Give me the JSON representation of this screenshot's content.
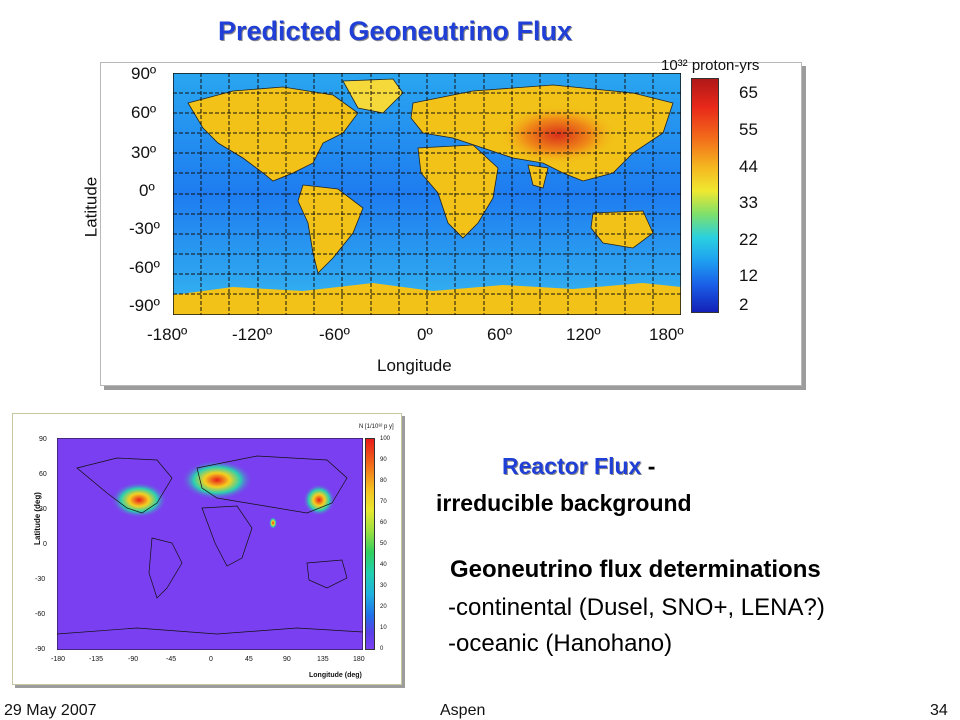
{
  "slide": {
    "title": "Predicted Geoneutrino Flux",
    "reactor_title": "Reactor Flux",
    "reactor_dash": " -",
    "reactor_subtitle": "irreducible background",
    "determinations": {
      "heading": "Geoneutrino flux determinations",
      "items": [
        "-continental (Dusel, SNO+, LENA?)",
        "-oceanic  (Hanohano)"
      ]
    },
    "footer": {
      "date": "29 May 2007",
      "location": "Aspen",
      "page": "34"
    }
  },
  "chart_data": [
    {
      "type": "heatmap",
      "title": "",
      "xlabel": "Longitude",
      "ylabel": "Latitude",
      "x_ticks": [
        "-180º",
        "-120º",
        "-60º",
        "0º",
        "60º",
        "120º",
        "180º"
      ],
      "y_ticks": [
        "90º",
        "60º",
        "30º",
        "0º",
        "-30º",
        "-60º",
        "-90º"
      ],
      "xlim": [
        -180,
        180
      ],
      "ylim": [
        -90,
        90
      ],
      "colorbar": {
        "unit": "10³² proton-yrs",
        "labels": [
          "65",
          "55",
          "44",
          "33",
          "22",
          "12",
          "2"
        ],
        "range": [
          2,
          70
        ]
      }
    },
    {
      "type": "heatmap",
      "title": "",
      "xlabel": "Longitude (deg)",
      "ylabel": "Latitude (deg)",
      "x_ticks": [
        "-180",
        "-135",
        "-90",
        "-45",
        "0",
        "45",
        "90",
        "135",
        "180"
      ],
      "y_ticks": [
        "90",
        "60",
        "30",
        "0",
        "-30",
        "-60",
        "-90"
      ],
      "xlim": [
        -180,
        180
      ],
      "ylim": [
        -90,
        90
      ],
      "colorbar": {
        "unit": "N [1/10³² p y]",
        "labels": [
          "100",
          "90",
          "80",
          "70",
          "60",
          "50",
          "40",
          "30",
          "20",
          "10",
          "0"
        ],
        "range": [
          0,
          100
        ]
      }
    }
  ],
  "colors": {
    "title_blue": "#1f3fd6",
    "ocean": "#1e6cf0",
    "continent": "#f2c218",
    "hotspot": "#ea3a12",
    "reactor_background": "#7a3ff0"
  }
}
